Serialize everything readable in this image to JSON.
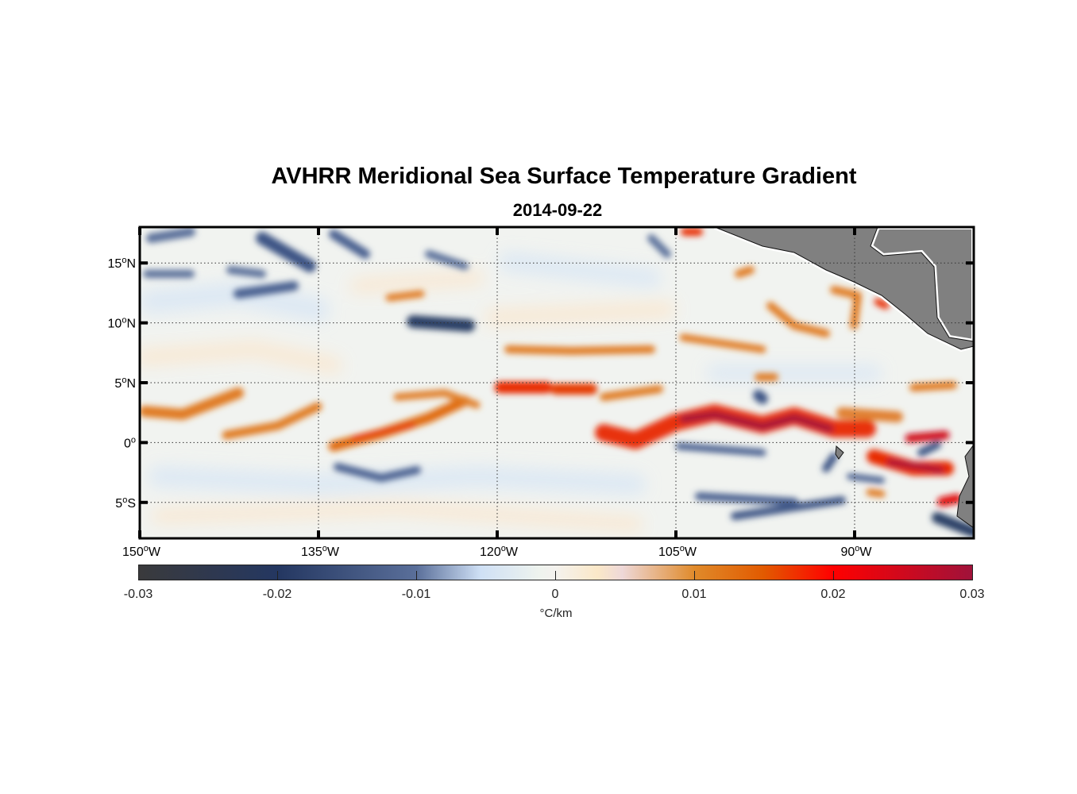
{
  "chart_data": {
    "type": "heatmap",
    "title": "AVHRR Meridional Sea Surface Temperature Gradient",
    "subtitle": "2014-09-22",
    "lon_range": [
      -150,
      -80
    ],
    "lat_range": [
      -8,
      18
    ],
    "x_ticks": [
      {
        "value": -150,
        "deg": "150",
        "hemi": "W"
      },
      {
        "value": -135,
        "deg": "135",
        "hemi": "W"
      },
      {
        "value": -120,
        "deg": "120",
        "hemi": "W"
      },
      {
        "value": -105,
        "deg": "105",
        "hemi": "W"
      },
      {
        "value": -90,
        "deg": "90",
        "hemi": "W"
      }
    ],
    "y_ticks": [
      {
        "value": 15,
        "deg": "15",
        "hemi": "N"
      },
      {
        "value": 10,
        "deg": "10",
        "hemi": "N"
      },
      {
        "value": 5,
        "deg": "5",
        "hemi": "N"
      },
      {
        "value": 0,
        "deg": "0",
        "hemi": ""
      },
      {
        "value": -5,
        "deg": "5",
        "hemi": "S"
      }
    ],
    "grid": "dotted",
    "colorbar": {
      "range": [
        -0.03,
        0.03
      ],
      "ticks": [
        "-0.03",
        "-0.02",
        "-0.01",
        "0",
        "0.01",
        "0.02",
        "0.03"
      ],
      "tick_values": [
        -0.03,
        -0.02,
        -0.01,
        0,
        0.01,
        0.02,
        0.03
      ],
      "label": "°C/km",
      "placement": "bottom"
    },
    "colors": {
      "land": "#808080",
      "positive": "#e25a00",
      "strong_positive": "#a0123a",
      "negative": "#243761"
    }
  }
}
